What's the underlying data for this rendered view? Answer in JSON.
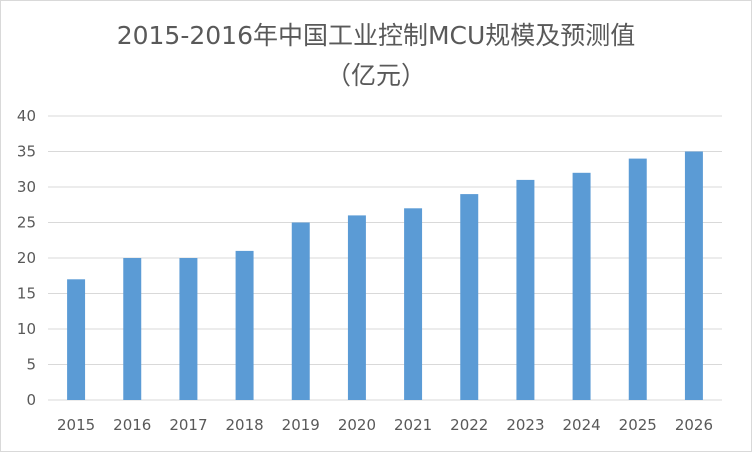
{
  "chart_data": {
    "type": "bar",
    "title": "2015-2016年中国工业控制MCU规模及预测值",
    "subtitle": "（亿元）",
    "categories": [
      "2015",
      "2016",
      "2017",
      "2018",
      "2019",
      "2020",
      "2021",
      "2022",
      "2023",
      "2024",
      "2025",
      "2026"
    ],
    "values": [
      17,
      20,
      20,
      21,
      25,
      26,
      27,
      29,
      31,
      32,
      34,
      35
    ],
    "ylim": [
      0,
      40
    ],
    "yticks": [
      "0",
      "5",
      "10",
      "15",
      "20",
      "25",
      "30",
      "35",
      "40"
    ],
    "grid": true,
    "legend": "none",
    "colors": {
      "bar": "#5b9bd5",
      "grid": "#d9d9d9",
      "text": "#595959"
    }
  }
}
